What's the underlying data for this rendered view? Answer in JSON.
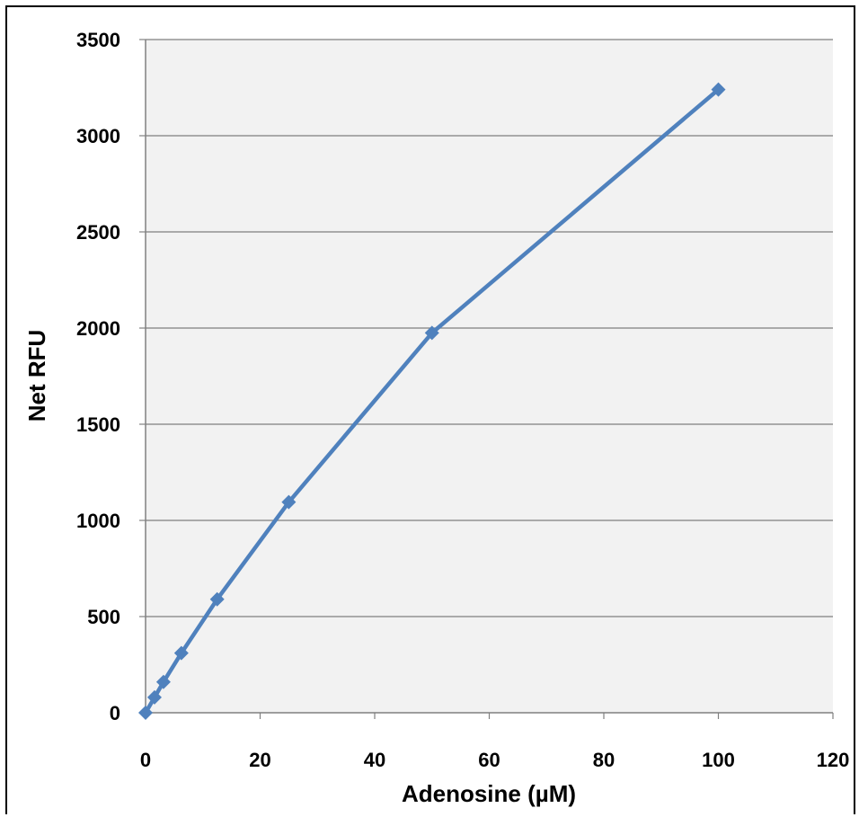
{
  "chart_data": {
    "type": "line",
    "title": "",
    "xlabel": "Adenosine (µM)",
    "ylabel": "Net RFU",
    "xlim": [
      0,
      120
    ],
    "ylim": [
      0,
      3500
    ],
    "xticks": [
      0,
      20,
      40,
      60,
      80,
      100,
      120
    ],
    "yticks": [
      0,
      500,
      1000,
      1500,
      2000,
      2500,
      3000,
      3500
    ],
    "grid": {
      "horizontal": true,
      "vertical": false
    },
    "legend": "none",
    "series": [
      {
        "x": [
          0,
          1.5625,
          3.125,
          6.25,
          12.5,
          25,
          50,
          100
        ],
        "y": [
          0,
          80,
          160,
          310,
          590,
          1095,
          1975,
          3240
        ],
        "color": "#4F81BD",
        "marker": "diamond"
      }
    ],
    "plot_background": "#F2F2F2",
    "gridline_color": "#808080"
  }
}
